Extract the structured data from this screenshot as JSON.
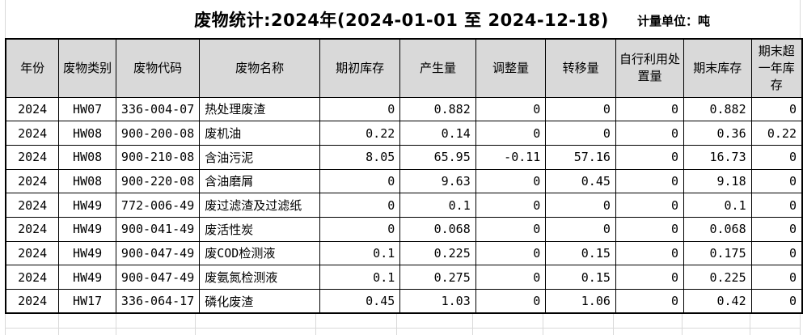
{
  "title": "废物统计:2024年(2024-01-01 至 2024-12-18)",
  "unit_label": "计量单位：吨",
  "colors": {
    "header_bg": "#d9d9d9",
    "table_border": "#000000",
    "ghost_gridline": "#d9d9d9"
  },
  "table": {
    "columns": [
      "年份",
      "废物类别",
      "废物代码",
      "废物名称",
      "期初库存",
      "产生量",
      "调整量",
      "转移量",
      "自行利用处置量",
      "期末库存",
      "期末超一年库存"
    ],
    "rows": [
      [
        "2024",
        "HW07",
        "336-004-07",
        "热处理废渣",
        "0",
        "0.882",
        "0",
        "0",
        "0",
        "0.882",
        "0"
      ],
      [
        "2024",
        "HW08",
        "900-200-08",
        "废机油",
        "0.22",
        "0.14",
        "0",
        "0",
        "0",
        "0.36",
        "0.22"
      ],
      [
        "2024",
        "HW08",
        "900-210-08",
        "含油污泥",
        "8.05",
        "65.95",
        "-0.11",
        "57.16",
        "0",
        "16.73",
        "0"
      ],
      [
        "2024",
        "HW08",
        "900-220-08",
        "含油磨屑",
        "0",
        "9.63",
        "0",
        "0.45",
        "0",
        "9.18",
        "0"
      ],
      [
        "2024",
        "HW49",
        "772-006-49",
        "废过滤渣及过滤纸",
        "0",
        "0.1",
        "0",
        "0",
        "0",
        "0.1",
        "0"
      ],
      [
        "2024",
        "HW49",
        "900-041-49",
        "废活性炭",
        "0",
        "0.068",
        "0",
        "0",
        "0",
        "0.068",
        "0"
      ],
      [
        "2024",
        "HW49",
        "900-047-49",
        "废COD检测液",
        "0.1",
        "0.225",
        "0",
        "0.15",
        "0",
        "0.175",
        "0"
      ],
      [
        "2024",
        "HW49",
        "900-047-49",
        "废氨氮检测液",
        "0.1",
        "0.275",
        "0",
        "0.15",
        "0",
        "0.225",
        "0"
      ],
      [
        "2024",
        "HW17",
        "336-064-17",
        "磷化废渣",
        "0.45",
        "1.03",
        "0",
        "1.06",
        "0",
        "0.42",
        "0"
      ]
    ]
  }
}
